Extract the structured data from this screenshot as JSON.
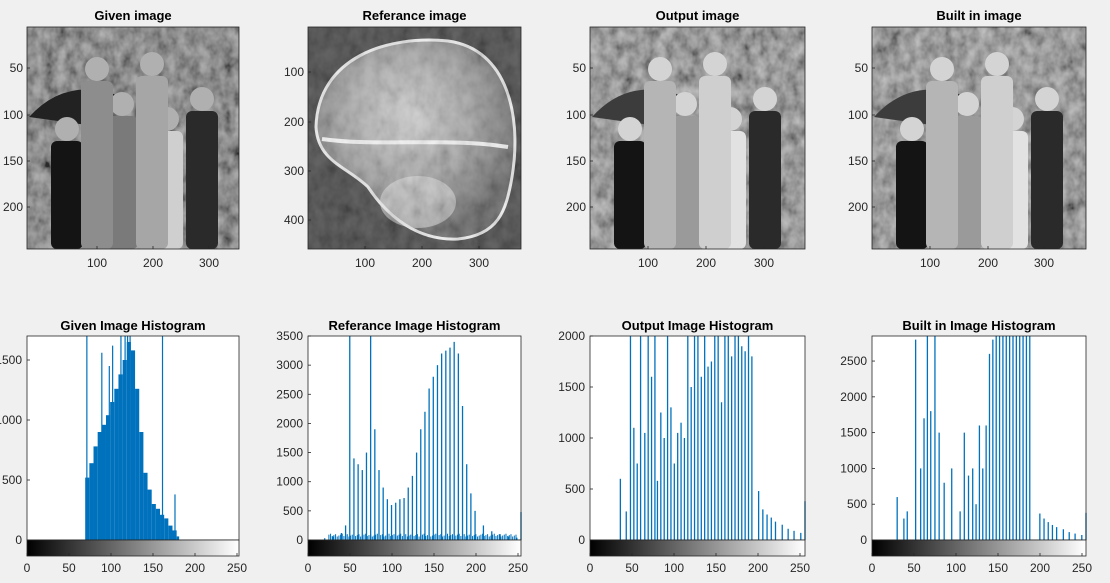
{
  "figure": {
    "background": "#f0f0f0",
    "image_panels": [
      {
        "name": "given-image",
        "title": "Given image",
        "x_ticks": [
          "100",
          "200",
          "300"
        ],
        "y_ticks": [
          "50",
          "100",
          "150",
          "200"
        ],
        "style": "crowd"
      },
      {
        "name": "reference-image",
        "title": "Referance image",
        "x_ticks": [
          "100",
          "200",
          "300"
        ],
        "y_ticks": [
          "100",
          "200",
          "300",
          "400"
        ],
        "style": "xray"
      },
      {
        "name": "output-image",
        "title": "Output image",
        "x_ticks": [
          "100",
          "200",
          "300"
        ],
        "y_ticks": [
          "50",
          "100",
          "150",
          "200"
        ],
        "style": "crowd-bright"
      },
      {
        "name": "builtin-image",
        "title": "Built in image",
        "x_ticks": [
          "100",
          "200",
          "300"
        ],
        "y_ticks": [
          "50",
          "100",
          "150",
          "200"
        ],
        "style": "crowd-bright"
      }
    ]
  },
  "chart_data": [
    {
      "type": "bar",
      "title": "Given Image Histogram",
      "xlabel": "",
      "ylabel": "",
      "xlim": [
        0,
        255
      ],
      "ylim": [
        0,
        1700
      ],
      "x_ticks": [
        "0",
        "50",
        "100",
        "150",
        "200",
        "250"
      ],
      "y_ticks": [
        "0",
        "500",
        "1000",
        "1500"
      ],
      "y_ticks_clipped": [
        "0",
        "500",
        "1000",
        "1500"
      ],
      "bar_color": "#0072bd",
      "series": [
        {
          "x": [
            70,
            75,
            80,
            85,
            90,
            95,
            100,
            105,
            110,
            115,
            120,
            125,
            130,
            135,
            140,
            145,
            150,
            155,
            160,
            165,
            170,
            175,
            180
          ],
          "values": [
            520,
            640,
            780,
            900,
            960,
            1040,
            1150,
            1260,
            1380,
            1500,
            1650,
            1580,
            1260,
            900,
            560,
            420,
            300,
            260,
            210,
            180,
            120,
            80,
            30
          ]
        }
      ],
      "spikes": {
        "x": [
          72,
          90,
          99,
          103,
          113,
          118,
          121,
          124,
          163,
          178
        ],
        "values": [
          1700,
          1560,
          1450,
          1620,
          1700,
          1700,
          1700,
          1700,
          1700,
          380
        ]
      }
    },
    {
      "type": "bar",
      "title": "Referance Image Histogram",
      "xlabel": "",
      "ylabel": "",
      "xlim": [
        0,
        255
      ],
      "ylim": [
        0,
        3500
      ],
      "x_ticks": [
        "0",
        "50",
        "100",
        "150",
        "200",
        "250"
      ],
      "y_ticks": [
        "0",
        "500",
        "1000",
        "1500",
        "2000",
        "2500",
        "3000",
        "3500"
      ],
      "bar_color": "#0072bd",
      "series": [
        {
          "x": [
            20,
            30,
            40,
            45,
            50,
            55,
            60,
            65,
            70,
            75,
            80,
            85,
            90,
            95,
            100,
            105,
            110,
            115,
            120,
            125,
            130,
            135,
            140,
            145,
            150,
            155,
            160,
            165,
            170,
            175,
            180,
            185,
            190,
            195,
            200,
            210,
            220,
            230,
            240,
            250,
            255
          ],
          "values": [
            30,
            60,
            120,
            250,
            3500,
            1400,
            1300,
            1200,
            1500,
            3500,
            1900,
            1200,
            900,
            700,
            600,
            640,
            700,
            720,
            900,
            1100,
            1500,
            1900,
            2200,
            2600,
            2800,
            3000,
            3200,
            3250,
            3300,
            3400,
            3200,
            2300,
            1300,
            800,
            500,
            250,
            150,
            100,
            60,
            40,
            480
          ]
        }
      ]
    },
    {
      "type": "bar",
      "title": "Output Image Histogram",
      "xlabel": "",
      "ylabel": "",
      "xlim": [
        0,
        255
      ],
      "ylim": [
        0,
        2000
      ],
      "x_ticks": [
        "0",
        "50",
        "100",
        "150",
        "200",
        "250"
      ],
      "y_ticks": [
        "0",
        "500",
        "1000",
        "1500",
        "2000"
      ],
      "bar_color": "#0072bd",
      "series": [
        {
          "x": [
            36,
            43,
            48,
            52,
            56,
            60,
            65,
            69,
            73,
            77,
            80,
            84,
            88,
            92,
            96,
            100,
            104,
            108,
            112,
            116,
            120,
            124,
            128,
            132,
            136,
            140,
            144,
            148,
            152,
            156,
            160,
            164,
            168,
            172,
            176,
            180,
            184,
            188,
            192,
            200,
            205,
            210,
            215,
            220,
            228,
            235,
            242,
            250,
            255
          ],
          "values": [
            600,
            280,
            2000,
            1100,
            750,
            2000,
            1050,
            2000,
            1600,
            2000,
            580,
            1250,
            1000,
            2000,
            1300,
            750,
            1050,
            1150,
            1000,
            2000,
            1500,
            2000,
            2000,
            1600,
            2000,
            1700,
            1750,
            2000,
            2000,
            1350,
            2000,
            2000,
            1800,
            2000,
            2000,
            1900,
            1850,
            2000,
            1800,
            480,
            300,
            250,
            220,
            180,
            150,
            110,
            90,
            70,
            380
          ]
        }
      ]
    },
    {
      "type": "bar",
      "title": "Built in Image Histogram",
      "xlabel": "",
      "ylabel": "",
      "xlim": [
        0,
        255
      ],
      "ylim": [
        0,
        2850
      ],
      "x_ticks": [
        "0",
        "50",
        "100",
        "150",
        "200",
        "250"
      ],
      "y_ticks": [
        "0",
        "500",
        "1000",
        "1500",
        "2000",
        "2500"
      ],
      "bar_color": "#0072bd",
      "series": [
        {
          "x": [
            30,
            38,
            42,
            52,
            58,
            62,
            66,
            70,
            75,
            80,
            86,
            95,
            105,
            110,
            115,
            120,
            124,
            128,
            132,
            136,
            140,
            144,
            148,
            152,
            156,
            160,
            164,
            168,
            172,
            176,
            180,
            184,
            188,
            200,
            205,
            210,
            215,
            220,
            228,
            235,
            242,
            250,
            255
          ],
          "values": [
            600,
            300,
            400,
            2800,
            1000,
            1700,
            2850,
            1800,
            2850,
            1500,
            800,
            1000,
            400,
            1500,
            900,
            1000,
            500,
            1600,
            1000,
            1600,
            2600,
            2800,
            2850,
            2850,
            2850,
            2850,
            2850,
            2850,
            2850,
            2850,
            2850,
            2850,
            2850,
            370,
            300,
            250,
            210,
            180,
            150,
            110,
            90,
            70,
            380
          ]
        }
      ]
    }
  ]
}
